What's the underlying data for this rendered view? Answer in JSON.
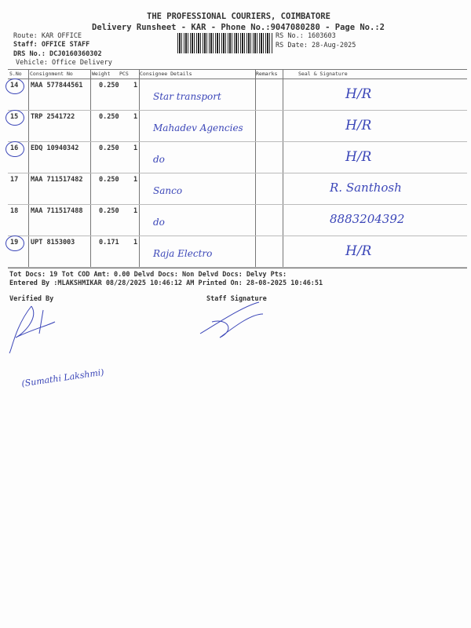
{
  "header": {
    "company": "THE PROFESSIONAL COURIERS, COIMBATORE",
    "subtitle": "Delivery Runsheet - KAR - Phone No.:9047080280 - Page No.:2",
    "route": "Route: KAR OFFICE",
    "staff": "Staff: OFFICE STAFF",
    "drs": "DRS No.: DCJ0160360302",
    "vehicle": "Vehicle: Office Delivery",
    "rs_no": "RS No.: 1603603",
    "rs_date": "RS Date: 28-Aug-2025"
  },
  "columns": [
    "S.No",
    "Consignment No",
    "Weight",
    "PCS",
    "Consignee Details",
    "Remarks",
    "Seal & Signature"
  ],
  "rows": [
    {
      "sno": "14",
      "cn": "MAA 577844561",
      "weight": "0.250",
      "pcs": "1",
      "consignee": "Star transport",
      "seal": "H/R"
    },
    {
      "sno": "15",
      "cn": "TRP 2541722",
      "weight": "0.250",
      "pcs": "1",
      "consignee": "Mahadev Agencies",
      "seal": "H/R"
    },
    {
      "sno": "16",
      "cn": "EDQ 10940342",
      "weight": "0.250",
      "pcs": "1",
      "consignee": "do",
      "seal": "H/R"
    },
    {
      "sno": "17",
      "cn": "MAA 711517482",
      "weight": "0.250",
      "pcs": "1",
      "consignee": "Sanco",
      "seal": "R. Santhosh"
    },
    {
      "sno": "18",
      "cn": "MAA 711517488",
      "weight": "0.250",
      "pcs": "1",
      "consignee": "do",
      "seal": "8883204392"
    },
    {
      "sno": "19",
      "cn": "UPT 8153003",
      "weight": "0.171",
      "pcs": "1",
      "consignee": "Raja Electro",
      "seal": "H/R"
    }
  ],
  "footer": {
    "totals": "Tot Docs:  19    Tot COD Amt:     0.00     Delvd Docs:      Non Delvd Docs:      Delvy Pts:",
    "entered": "Entered By :MLAKSHMIKAR 08/28/2025 10:46:12 AM     Printed On: 28-08-2025 10:46:51",
    "verified": "Verified By",
    "staff_sig": "Staff Signature",
    "handwritten_name": "(Sumathi Lakshmi)"
  }
}
